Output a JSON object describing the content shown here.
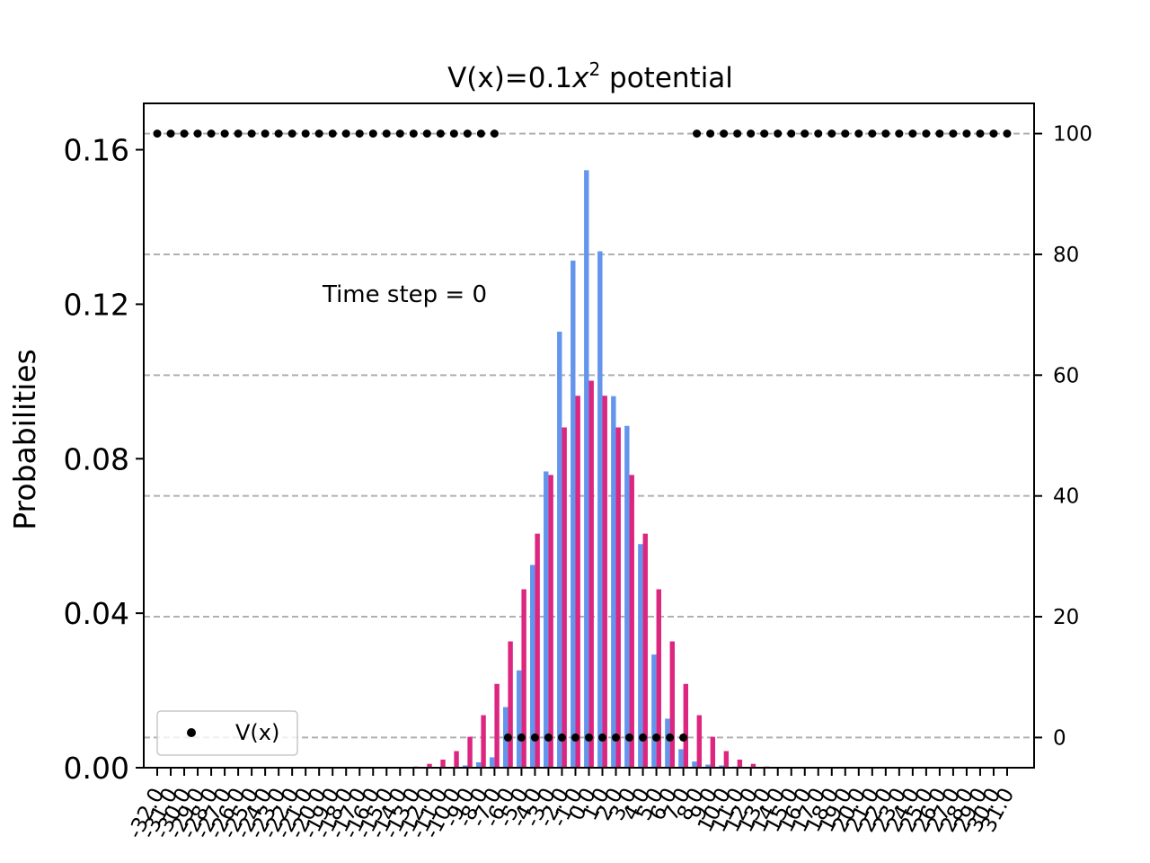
{
  "chart_data": {
    "type": "bar",
    "title_main": "V(x)=0.1",
    "title_var": "x",
    "title_sup": "2",
    "title_rest": " potential",
    "ylabel": "Probabilities",
    "annotation": "Time step = 0",
    "legend_entry": "V(x)",
    "legend_location": "lower-left",
    "grid": "horizontal dashed, right axis",
    "x": [
      -32,
      -31,
      -30,
      -29,
      -28,
      -27,
      -26,
      -25,
      -24,
      -23,
      -22,
      -21,
      -20,
      -19,
      -18,
      -17,
      -16,
      -15,
      -14,
      -13,
      -12,
      -11,
      -10,
      -9,
      -8,
      -7,
      -6,
      -5,
      -4,
      -3,
      -2,
      -1,
      0,
      1,
      2,
      3,
      4,
      5,
      6,
      7,
      8,
      9,
      10,
      11,
      12,
      13,
      14,
      15,
      16,
      17,
      18,
      19,
      20,
      21,
      22,
      23,
      24,
      25,
      26,
      27,
      28,
      29,
      30,
      31
    ],
    "xlim": [
      -33,
      33
    ],
    "left_ylim": [
      0,
      0.172
    ],
    "left_yticks": [
      "0.00",
      "0.04",
      "0.08",
      "0.12",
      "0.16"
    ],
    "right_ylim": [
      -5,
      105
    ],
    "right_yticks": [
      "0",
      "20",
      "40",
      "60",
      "80",
      "100"
    ],
    "series": [
      {
        "color": "#6495ed",
        "values": [
          0,
          0,
          0,
          0,
          0,
          0,
          0,
          0,
          0,
          0,
          0,
          0,
          0,
          0,
          0,
          0,
          0,
          0,
          0,
          0,
          0,
          0,
          0.0002,
          0.0006,
          0.0014,
          0.0027,
          0.0157,
          0.0252,
          0.0525,
          0.0767,
          0.1129,
          0.1313,
          0.1547,
          0.1337,
          0.0962,
          0.0885,
          0.0579,
          0.0293,
          0.0127,
          0.0048,
          0.0016,
          0.0008,
          0.0006,
          0.0003,
          0,
          0,
          0,
          0,
          0,
          0,
          0,
          0,
          0,
          0,
          0,
          0,
          0,
          0,
          0,
          0,
          0,
          0,
          0,
          0
        ]
      },
      {
        "color": "#dc267f",
        "values": [
          0,
          0,
          0,
          0,
          0,
          0,
          0,
          0,
          0,
          0,
          0,
          0,
          0,
          0,
          0,
          0,
          0,
          0,
          0,
          0.0003,
          0.001,
          0.0021,
          0.0043,
          0.008,
          0.0136,
          0.0217,
          0.0327,
          0.0462,
          0.0606,
          0.0758,
          0.0881,
          0.0963,
          0.1002,
          0.0963,
          0.0881,
          0.0758,
          0.0606,
          0.0462,
          0.0327,
          0.0217,
          0.0136,
          0.008,
          0.0043,
          0.0021,
          0.001,
          0.0003,
          0,
          0,
          0,
          0,
          0,
          0,
          0,
          0,
          0,
          0,
          0,
          0,
          0,
          0,
          0,
          0,
          0,
          0
        ]
      }
    ],
    "potential": {
      "name": "V(x)",
      "color": "#000000",
      "x": [
        -32,
        -31,
        -30,
        -29,
        -28,
        -27,
        -26,
        -25,
        -24,
        -23,
        -22,
        -21,
        -20,
        -19,
        -18,
        -17,
        -16,
        -15,
        -14,
        -13,
        -12,
        -11,
        -10,
        -9,
        -8,
        -7,
        -6,
        -5,
        -4,
        -3,
        -2,
        -1,
        0,
        1,
        2,
        3,
        4,
        5,
        6,
        7,
        8,
        9,
        10,
        11,
        12,
        13,
        14,
        15,
        16,
        17,
        18,
        19,
        20,
        21,
        22,
        23,
        24,
        25,
        26,
        27,
        28,
        29,
        30,
        31
      ],
      "values": [
        100,
        100,
        100,
        100,
        100,
        100,
        100,
        100,
        100,
        100,
        100,
        100,
        100,
        100,
        100,
        100,
        100,
        100,
        100,
        100,
        100,
        100,
        100,
        100,
        100,
        100,
        0,
        0,
        0,
        0,
        0,
        0,
        0,
        0,
        0,
        0,
        0,
        0,
        0,
        0,
        100,
        100,
        100,
        100,
        100,
        100,
        100,
        100,
        100,
        100,
        100,
        100,
        100,
        100,
        100,
        100,
        100,
        100,
        100,
        100,
        100,
        100,
        100,
        100
      ]
    }
  }
}
